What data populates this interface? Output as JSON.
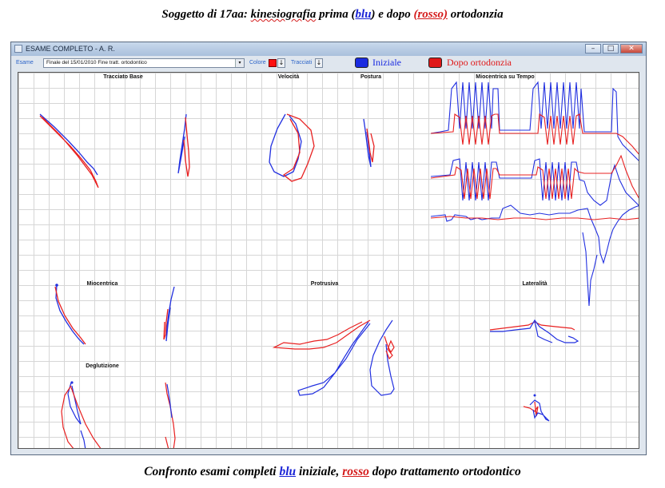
{
  "caption_top": {
    "prefix": "Soggetto di 17aa: ",
    "word_kinesio": "kinesiografia",
    "middle1": " prima (",
    "blu": "blu",
    "middle2": ") e dopo ",
    "rosso": "(rosso)",
    "suffix": " ortodonzia"
  },
  "caption_bottom": {
    "prefix": "Confronto esami completi ",
    "blu": "blu",
    "middle": " iniziale, ",
    "rosso": "rosso",
    "suffix": " dopo trattamento ortodontico"
  },
  "window": {
    "title": "ESAME COMPLETO - A. R.",
    "buttons": [
      "–",
      "□",
      "✕"
    ]
  },
  "toolbar": {
    "esame_label": "Esame",
    "esame_value": "Finale del 15/01/2010  Fine tratt. ortodontico",
    "colore_label": "Colore",
    "tracciati_label": "Tracciati",
    "dropdown_arrow": "▾",
    "down_arrow": "↓"
  },
  "legend": {
    "initial_label": "Iniziale",
    "after_label": "Dopo ortodonzia",
    "initial_color": "#1a2be0",
    "after_color": "#e01818"
  },
  "panels": {
    "tracciato_base": "Tracciato Base",
    "velocita": "Velocità",
    "postura": "Postura",
    "miocentrica_tempo": "Miocentrica su Tempo",
    "miocentrica": "Miocentrica",
    "protrusiva": "Protrusiva",
    "lateralita": "Lateralità",
    "deglutizione": "Deglutizione"
  },
  "colors": {
    "blue": "#2230e0",
    "red": "#e82020"
  }
}
